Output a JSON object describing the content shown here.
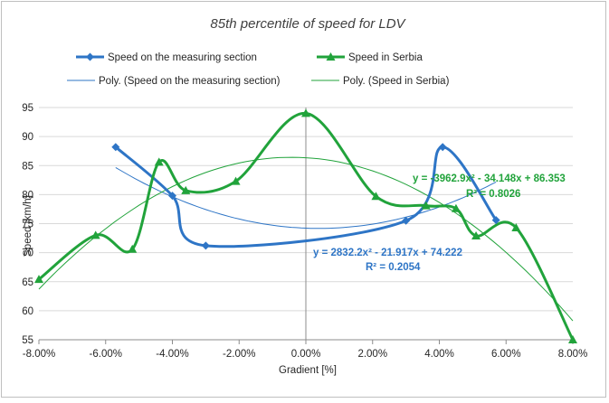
{
  "chart_data": {
    "type": "line",
    "title": "85th percentile of speed for LDV",
    "xlabel": "Gradient [%]",
    "ylabel": "Speed [km/h]",
    "xlim": [
      -0.08,
      0.08
    ],
    "ylim": [
      55,
      95
    ],
    "x_ticks": [
      -0.08,
      -0.06,
      -0.04,
      -0.02,
      0.0,
      0.02,
      0.04,
      0.06,
      0.08
    ],
    "x_tick_labels": [
      "-8.00%",
      "-6.00%",
      "-4.00%",
      "-2.00%",
      "0.00%",
      "2.00%",
      "4.00%",
      "6.00%",
      "8.00%"
    ],
    "y_ticks": [
      55,
      60,
      65,
      70,
      75,
      80,
      85,
      90,
      95
    ],
    "y_tick_labels": [
      "55",
      "60",
      "65",
      "70",
      "75",
      "80",
      "85",
      "90",
      "95"
    ],
    "grid": "horizontal",
    "legend_position": "top",
    "series": [
      {
        "name": "Speed on the measuring section",
        "marker": "diamond",
        "color": "#2e75c6",
        "x": [
          -0.057,
          -0.04,
          -0.03,
          0.03,
          0.041,
          0.057
        ],
        "y": [
          88.2,
          79.8,
          71.2,
          75.5,
          88.2,
          75.6
        ]
      },
      {
        "name": "Speed in Serbia",
        "marker": "triangle",
        "color": "#21a33b",
        "x": [
          -0.08,
          -0.063,
          -0.052,
          -0.044,
          -0.036,
          -0.021,
          0.0,
          0.021,
          0.036,
          0.045,
          0.051,
          0.063,
          0.08
        ],
        "y": [
          65.4,
          73.0,
          70.6,
          85.6,
          80.7,
          82.3,
          94.0,
          79.7,
          78.1,
          77.6,
          72.9,
          74.3,
          55.0
        ]
      }
    ],
    "trendlines": [
      {
        "name": "Poly. (Speed on the measuring section)",
        "color": "#2e75c6",
        "coefficients": [
          2832.2,
          -21.917,
          74.222
        ],
        "x_range": [
          -0.057,
          0.057
        ],
        "equation_label": "y = 2832.2x² - 21.917x + 74.222",
        "r2_label": "R² = 0.2054"
      },
      {
        "name": "Poly. (Speed in Serbia)",
        "color": "#21a33b",
        "coefficients": [
          -3962.9,
          -34.148,
          86.353
        ],
        "x_range": [
          -0.08,
          0.08
        ],
        "equation_label": "y = -3962.9x² - 34.148x + 86.353",
        "r2_label": "R² = 0.8026"
      }
    ]
  }
}
